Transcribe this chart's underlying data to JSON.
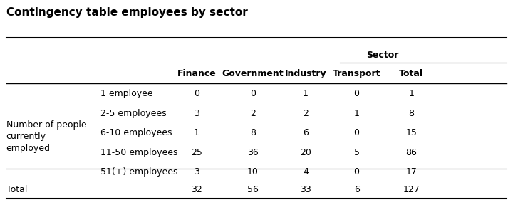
{
  "title": "Contingency table employees by sector",
  "sector_label": "Sector",
  "col_headers": [
    "Finance",
    "Government",
    "Industry",
    "Transport",
    "Total"
  ],
  "row_group_label": [
    "Number of people",
    "currently",
    "employed"
  ],
  "row_sub_labels": [
    "1 employee",
    "2-5 employees",
    "6-10 employees",
    "11-50 employees",
    "51(+) employees"
  ],
  "total_row_label": "Total",
  "data": [
    [
      0,
      0,
      1,
      0,
      1
    ],
    [
      3,
      2,
      2,
      1,
      8
    ],
    [
      1,
      8,
      6,
      0,
      15
    ],
    [
      25,
      36,
      20,
      5,
      86
    ],
    [
      3,
      10,
      4,
      0,
      17
    ]
  ],
  "total_row": [
    32,
    56,
    33,
    6,
    127
  ],
  "bg_color": "#ffffff",
  "text_color": "#000000",
  "title_fontsize": 11,
  "header_fontsize": 9,
  "body_fontsize": 9
}
